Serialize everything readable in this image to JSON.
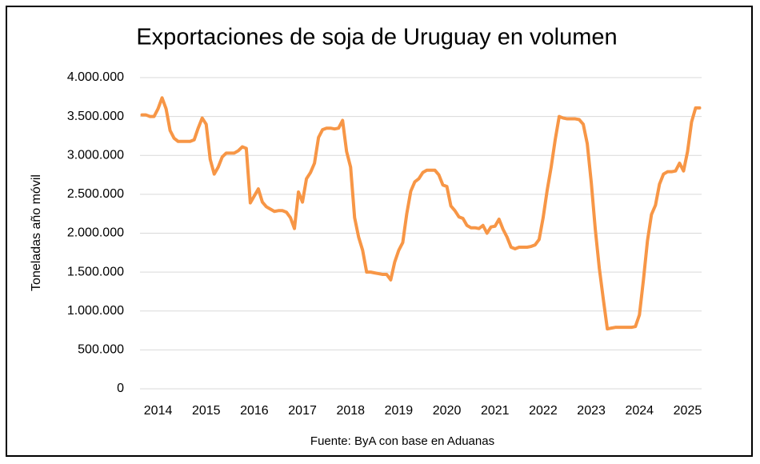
{
  "chart_data": {
    "type": "line",
    "title": "Exportaciones de soja de Uruguay en volumen",
    "y_label": "Toneladas año móvil",
    "source": "Fuente: ByA con base en Aduanas",
    "color": "#f79646",
    "grid": true,
    "categories": [
      null,
      null,
      null,
      null,
      "2014",
      null,
      null,
      null,
      null,
      null,
      null,
      null,
      null,
      null,
      null,
      null,
      "2015",
      null,
      null,
      null,
      null,
      null,
      null,
      null,
      null,
      null,
      null,
      null,
      "2016",
      null,
      null,
      null,
      null,
      null,
      null,
      null,
      null,
      null,
      null,
      null,
      "2017",
      null,
      null,
      null,
      null,
      null,
      null,
      null,
      null,
      null,
      null,
      null,
      "2018",
      null,
      null,
      null,
      null,
      null,
      null,
      null,
      null,
      null,
      null,
      null,
      "2019",
      null,
      null,
      null,
      null,
      null,
      null,
      null,
      null,
      null,
      null,
      null,
      "2020",
      null,
      null,
      null,
      null,
      null,
      null,
      null,
      null,
      null,
      null,
      null,
      "2021",
      null,
      null,
      null,
      null,
      null,
      null,
      null,
      null,
      null,
      null,
      null,
      "2022",
      null,
      null,
      null,
      null,
      null,
      null,
      null,
      null,
      null,
      null,
      null,
      "2023",
      null,
      null,
      null,
      null,
      null,
      null,
      null,
      null,
      null,
      null,
      null,
      "2024",
      null,
      null,
      null,
      null,
      null,
      null,
      null,
      null,
      null,
      null,
      null,
      "2025",
      null,
      null,
      null
    ],
    "values": [
      3520000,
      3520000,
      3500000,
      3500000,
      3600000,
      3740000,
      3600000,
      3320000,
      3220000,
      3180000,
      3180000,
      3180000,
      3180000,
      3200000,
      3350000,
      3480000,
      3400000,
      2950000,
      2760000,
      2850000,
      2980000,
      3030000,
      3030000,
      3030000,
      3060000,
      3110000,
      3090000,
      2390000,
      2480000,
      2570000,
      2400000,
      2340000,
      2310000,
      2280000,
      2290000,
      2290000,
      2270000,
      2200000,
      2060000,
      2530000,
      2400000,
      2700000,
      2780000,
      2900000,
      3230000,
      3330000,
      3350000,
      3350000,
      3340000,
      3350000,
      3450000,
      3050000,
      2850000,
      2200000,
      1950000,
      1780000,
      1500000,
      1500000,
      1490000,
      1480000,
      1470000,
      1470000,
      1400000,
      1630000,
      1780000,
      1880000,
      2250000,
      2540000,
      2660000,
      2700000,
      2780000,
      2810000,
      2810000,
      2810000,
      2750000,
      2620000,
      2600000,
      2350000,
      2290000,
      2210000,
      2190000,
      2100000,
      2070000,
      2070000,
      2060000,
      2100000,
      2000000,
      2080000,
      2090000,
      2180000,
      2050000,
      1950000,
      1820000,
      1800000,
      1820000,
      1820000,
      1820000,
      1830000,
      1850000,
      1920000,
      2200000,
      2550000,
      2850000,
      3200000,
      3500000,
      3480000,
      3470000,
      3470000,
      3470000,
      3460000,
      3400000,
      3150000,
      2650000,
      2050000,
      1550000,
      1150000,
      770000,
      780000,
      790000,
      790000,
      790000,
      790000,
      790000,
      800000,
      950000,
      1400000,
      1900000,
      2240000,
      2360000,
      2630000,
      2760000,
      2790000,
      2790000,
      2800000,
      2900000,
      2800000,
      3050000,
      3430000,
      3610000,
      3610000
    ],
    "ylim": [
      0,
      4000000
    ],
    "yticks": [
      0,
      {
        "value": 500000,
        "label": "500.000"
      },
      {
        "value": 1000000,
        "label": "1.000.000"
      },
      {
        "value": 1500000,
        "label": "1.500.000"
      },
      {
        "value": 2000000,
        "label": "2.000.000"
      },
      {
        "value": 2500000,
        "label": "2.500.000"
      },
      {
        "value": 3000000,
        "label": "3.000.000"
      },
      {
        "value": 3500000,
        "label": "3.500.000"
      },
      {
        "value": 4000000,
        "label": "4.000.000"
      }
    ]
  }
}
